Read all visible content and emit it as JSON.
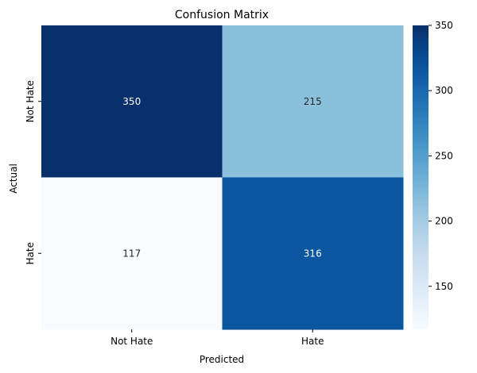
{
  "chart_data": {
    "type": "heatmap",
    "title": "Confusion Matrix",
    "xlabel": "Predicted",
    "ylabel": "Actual",
    "x_categories": [
      "Not Hate",
      "Hate"
    ],
    "y_categories": [
      "Not Hate",
      "Hate"
    ],
    "values": [
      [
        350,
        215
      ],
      [
        117,
        316
      ]
    ],
    "colormap": "Blues",
    "colorbar": {
      "range": [
        117,
        350
      ],
      "ticks": [
        150,
        200,
        250,
        300,
        350
      ],
      "tick_labels": [
        "150",
        "200",
        "250",
        "300",
        "350"
      ]
    }
  }
}
